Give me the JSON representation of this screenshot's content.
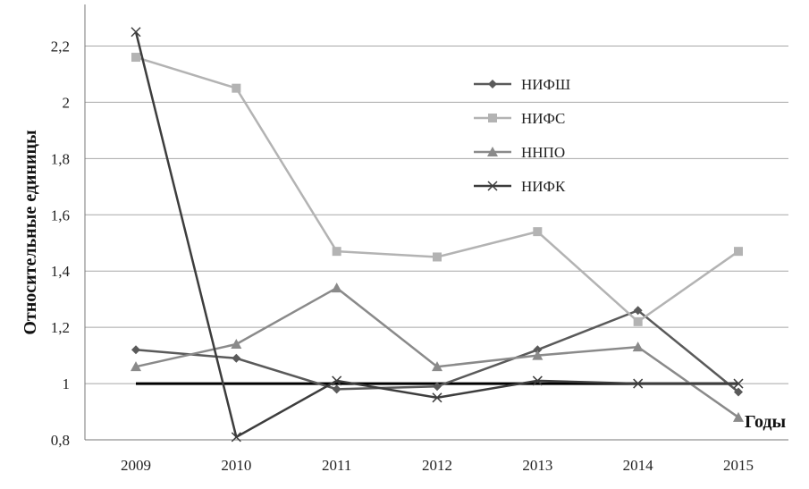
{
  "chart_data": {
    "type": "line",
    "title": "",
    "xlabel": "Годы",
    "ylabel": "Относительные единицы",
    "categories": [
      "2009",
      "2010",
      "2011",
      "2012",
      "2013",
      "2014",
      "2015"
    ],
    "ylim": [
      0.8,
      2.3
    ],
    "yticks": [
      0.8,
      1,
      1.2,
      1.4,
      1.6,
      1.8,
      2,
      2.2
    ],
    "ytick_labels": [
      "0,8",
      "1",
      "1,2",
      "1,4",
      "1,6",
      "1,8",
      "2",
      "2,2"
    ],
    "grid": true,
    "legend_position": "top-right",
    "reference_line": {
      "value": 1,
      "color": "#000000"
    },
    "series": [
      {
        "name": "НИФШ",
        "marker": "diamond",
        "color": "#5a5a5a",
        "values": [
          1.12,
          1.09,
          0.98,
          0.99,
          1.12,
          1.26,
          0.97
        ]
      },
      {
        "name": "НИФС",
        "marker": "square",
        "color": "#b3b3b3",
        "values": [
          2.16,
          2.05,
          1.47,
          1.45,
          1.54,
          1.22,
          1.47
        ]
      },
      {
        "name": "ННПО",
        "marker": "triangle",
        "color": "#8a8a8a",
        "values": [
          1.06,
          1.14,
          1.34,
          1.06,
          1.1,
          1.13,
          0.88
        ]
      },
      {
        "name": "НИФК",
        "marker": "x",
        "color": "#3d3d3d",
        "values": [
          2.25,
          0.81,
          1.01,
          0.95,
          1.01,
          1.0,
          1.0
        ]
      }
    ]
  }
}
